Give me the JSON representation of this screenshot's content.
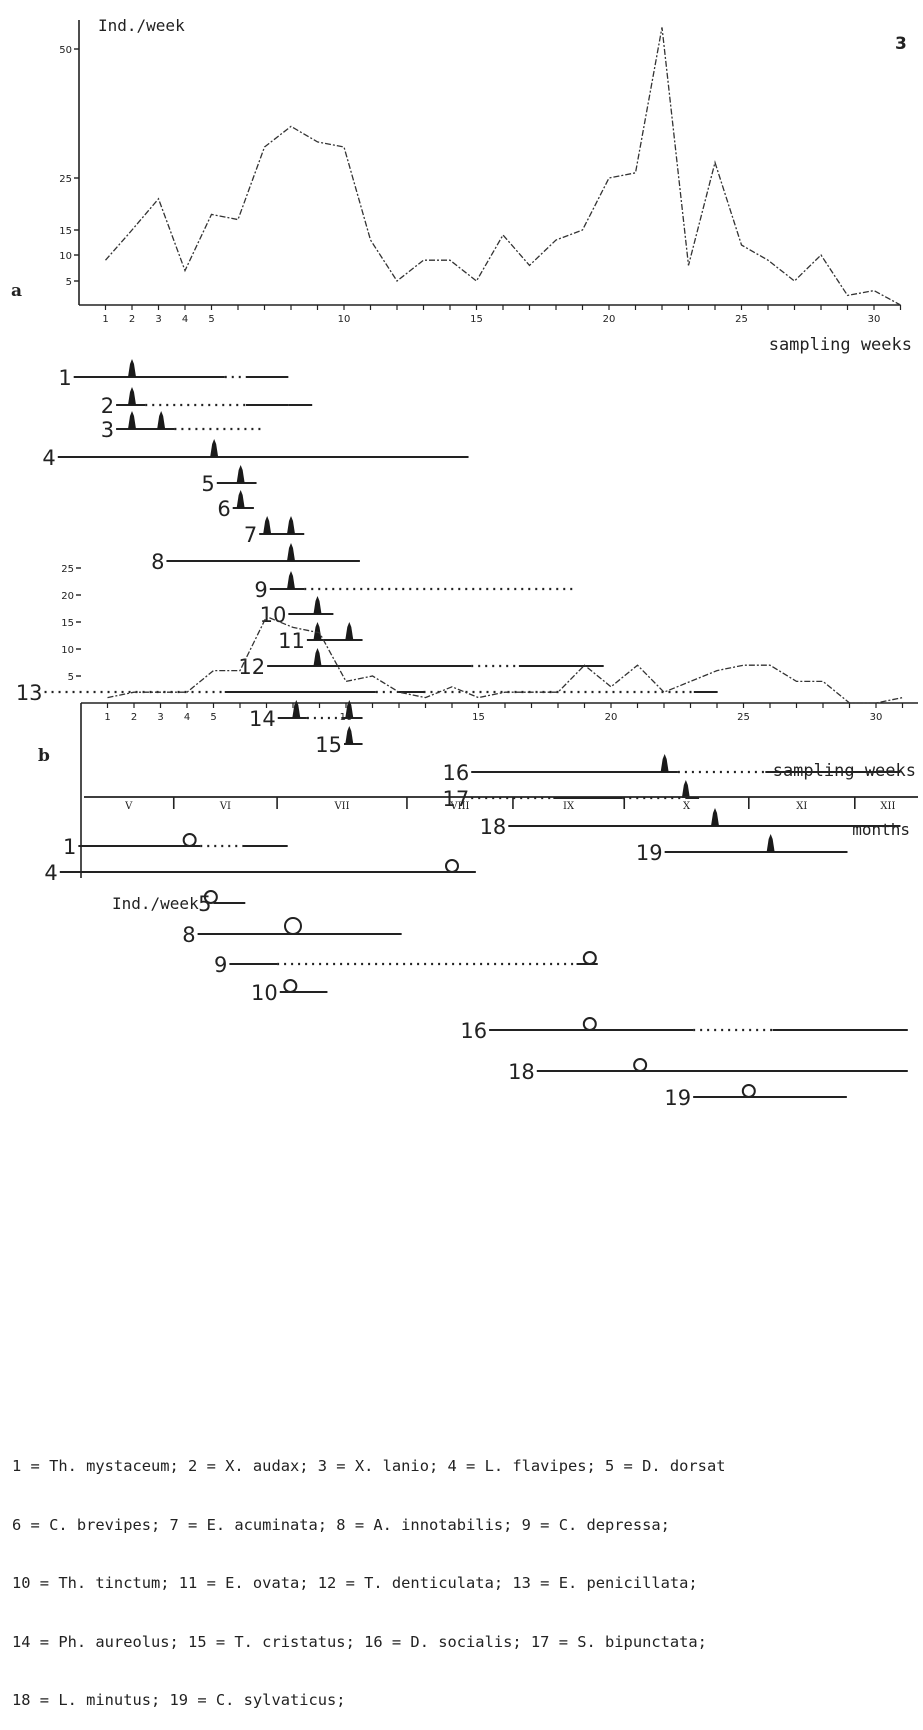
{
  "figure_number": "3",
  "legend_lines": [
    "1 = Th. mystaceum; 2 = X. audax; 3 = X. lanio; 4 = L. flavipes; 5 = D. dorsat",
    "6 = C. brevipes; 7 = E. acuminata; 8 = A. innotabilis; 9 = C. depressa;",
    "10 = Th. tinctum; 11 = E. ovata; 12 = T. denticulata; 13 = E. penicillata;",
    "14 = Ph. aureolus; 15 = T. cristatus; 16 = D. socialis; 17 = S. bipunctata;",
    "18 = L. minutus; 19 = C. sylvaticus;"
  ],
  "chart_data": [
    {
      "panel": "a",
      "type": "line",
      "ylabel": "Ind./week",
      "xlabel": "sampling weeks",
      "x_ticks": [
        1,
        2,
        3,
        4,
        5,
        10,
        15,
        20,
        25,
        30
      ],
      "y_ticks": [
        5,
        10,
        15,
        25,
        50
      ],
      "xlim": [
        0,
        31
      ],
      "ylim": [
        0,
        55
      ],
      "x": [
        1,
        2,
        3,
        4,
        5,
        6,
        7,
        8,
        9,
        10,
        11,
        12,
        13,
        14,
        15,
        16,
        17,
        18,
        19,
        20,
        21,
        22,
        23,
        24,
        25,
        26,
        27,
        28,
        29,
        30,
        31
      ],
      "values": [
        9,
        15,
        21,
        7,
        18,
        17,
        31,
        35,
        32,
        31,
        13,
        5,
        9,
        9,
        5,
        14,
        8,
        13,
        15,
        25,
        26,
        54,
        8,
        28,
        12,
        9,
        5,
        10,
        2,
        3,
        0
      ]
    },
    {
      "panel": "b",
      "type": "line",
      "ylabel": "Ind./week",
      "xlabel": "sampling weeks",
      "x_ticks": [
        1,
        2,
        3,
        4,
        5,
        10,
        15,
        20,
        25,
        30
      ],
      "y_ticks": [
        5,
        10,
        15,
        20,
        25
      ],
      "xlim": [
        0,
        31
      ],
      "ylim": [
        0,
        28
      ],
      "x": [
        1,
        2,
        3,
        4,
        5,
        6,
        7,
        8,
        9,
        10,
        11,
        12,
        13,
        14,
        15,
        16,
        17,
        18,
        19,
        20,
        21,
        22,
        23,
        24,
        25,
        26,
        27,
        28,
        29,
        30,
        31
      ],
      "values": [
        1,
        2,
        2,
        2,
        6,
        6,
        16,
        14,
        13,
        4,
        5,
        2,
        1,
        3,
        1,
        2,
        2,
        2,
        7,
        3,
        7,
        2,
        4,
        6,
        7,
        7,
        4,
        4,
        0,
        0,
        1
      ]
    }
  ],
  "phenology_a": [
    {
      "label": "1",
      "segments": [
        [
          -0.2,
          5.5,
          "solid"
        ],
        [
          5.5,
          6.3,
          "dotted"
        ],
        [
          6.3,
          7.9,
          "solid"
        ]
      ],
      "peaks": [
        2
      ]
    },
    {
      "label": "2",
      "segments": [
        [
          1.4,
          2.5,
          "solid"
        ],
        [
          2.5,
          6.3,
          "dotted"
        ],
        [
          6.3,
          7.9,
          "solid"
        ],
        [
          7.9,
          8.8,
          "solid"
        ]
      ],
      "peaks": [
        2
      ]
    },
    {
      "label": "3",
      "segments": [
        [
          1.4,
          3.6,
          "solid"
        ],
        [
          3.6,
          6.9,
          "dotted"
        ]
      ],
      "peaks": [
        2,
        3.1
      ]
    },
    {
      "label": "4",
      "segments": [
        [
          -0.8,
          14.7,
          "solid"
        ]
      ],
      "peaks": [
        5.1
      ]
    },
    {
      "label": "5",
      "segments": [
        [
          5.2,
          6.7,
          "solid"
        ]
      ],
      "peaks": [
        6.1
      ]
    },
    {
      "label": "6",
      "segments": [
        [
          5.8,
          6.6,
          "solid"
        ]
      ],
      "peaks": [
        6.1
      ]
    },
    {
      "label": "7",
      "segments": [
        [
          6.8,
          8.5,
          "solid"
        ]
      ],
      "peaks": [
        7.1,
        8
      ]
    },
    {
      "label": "8",
      "segments": [
        [
          3.3,
          10.6,
          "solid"
        ]
      ],
      "peaks": [
        8
      ]
    },
    {
      "label": "9",
      "segments": [
        [
          7.2,
          8.5,
          "solid"
        ],
        [
          8.5,
          18.8,
          "dotted"
        ]
      ],
      "peaks": [
        8
      ]
    },
    {
      "label": "10",
      "segments": [
        [
          7.9,
          9.6,
          "solid"
        ]
      ],
      "peaks": [
        9
      ]
    },
    {
      "label": "11",
      "segments": [
        [
          8.6,
          10.7,
          "solid"
        ]
      ],
      "peaks": [
        9,
        10.2
      ]
    },
    {
      "label": "12",
      "segments": [
        [
          7.1,
          14.8,
          "solid"
        ],
        [
          14.8,
          16.6,
          "dotted"
        ],
        [
          16.6,
          19.8,
          "solid"
        ]
      ],
      "peaks": [
        9
      ]
    },
    {
      "label": "13",
      "segments": [
        [
          -1.3,
          5.5,
          "dotted"
        ],
        [
          5.5,
          11.2,
          "solid"
        ],
        [
          11.2,
          12,
          "dotted"
        ],
        [
          12,
          13,
          "solid"
        ],
        [
          13,
          23.2,
          "dotted"
        ],
        [
          23.2,
          24.1,
          "solid"
        ]
      ],
      "peaks": []
    },
    {
      "label": "14",
      "segments": [
        [
          7.5,
          8.6,
          "solid"
        ],
        [
          8.6,
          9.9,
          "dotted"
        ],
        [
          9.9,
          10.7,
          "solid"
        ]
      ],
      "peaks": [
        8.2,
        10.2
      ]
    },
    {
      "label": "15",
      "segments": [
        [
          10,
          10.7,
          "solid"
        ]
      ],
      "peaks": [
        10.2
      ]
    },
    {
      "label": "16",
      "segments": [
        [
          14.8,
          22.6,
          "solid"
        ],
        [
          22.6,
          25.9,
          "dotted"
        ],
        [
          25.9,
          31,
          "solid"
        ]
      ],
      "peaks": [
        22.1
      ]
    },
    {
      "label": "17",
      "segments": [
        [
          14.8,
          17.9,
          "dotted"
        ],
        [
          17.9,
          20.5,
          "solid"
        ],
        [
          20.5,
          22.9,
          "dotted"
        ],
        [
          22.9,
          23.4,
          "solid"
        ]
      ],
      "peaks": [
        22.9
      ]
    },
    {
      "label": "18",
      "segments": [
        [
          16.2,
          31,
          "solid"
        ]
      ],
      "peaks": [
        24
      ]
    },
    {
      "label": "19",
      "segments": [
        [
          22.1,
          29,
          "solid"
        ]
      ],
      "peaks": [
        26.1
      ]
    }
  ],
  "phenology_b": [
    {
      "label": "1",
      "segments": [
        [
          -0.1,
          4.5,
          "solid"
        ],
        [
          4.5,
          6.1,
          "dotted"
        ],
        [
          6.1,
          7.8,
          "solid"
        ]
      ],
      "circles": [
        [
          4.1,
          "small"
        ]
      ]
    },
    {
      "label": "4",
      "segments": [
        [
          -0.8,
          14.9,
          "solid"
        ]
      ],
      "circles": [
        [
          14,
          "small"
        ]
      ]
    },
    {
      "label": "5",
      "segments": [
        [
          5,
          6.2,
          "solid"
        ]
      ],
      "circles": [
        [
          4.9,
          "small"
        ]
      ]
    },
    {
      "label": "8",
      "segments": [
        [
          4.4,
          12.1,
          "solid"
        ]
      ],
      "circles": [
        [
          8,
          "large"
        ]
      ]
    },
    {
      "label": "9",
      "segments": [
        [
          5.6,
          7.4,
          "solid"
        ],
        [
          7.4,
          18.7,
          "dotted"
        ],
        [
          18.7,
          19.5,
          "solid"
        ]
      ],
      "circles": [
        [
          19.2,
          "small"
        ]
      ]
    },
    {
      "label": "10",
      "segments": [
        [
          7.5,
          9.3,
          "solid"
        ]
      ],
      "circles": [
        [
          7.9,
          "small"
        ]
      ]
    },
    {
      "label": "16",
      "segments": [
        [
          15.4,
          23.1,
          "solid"
        ],
        [
          23.1,
          26.1,
          "dotted"
        ],
        [
          26.1,
          31.2,
          "solid"
        ]
      ],
      "circles": [
        [
          19.2,
          "small"
        ]
      ]
    },
    {
      "label": "18",
      "segments": [
        [
          17.2,
          31.2,
          "solid"
        ]
      ],
      "circles": [
        [
          21.1,
          "small"
        ]
      ]
    },
    {
      "label": "19",
      "segments": [
        [
          23.1,
          28.9,
          "solid"
        ]
      ],
      "circles": [
        [
          25.2,
          "small"
        ]
      ]
    }
  ],
  "months": {
    "label": "months",
    "names": [
      "V",
      "VI",
      "VII",
      "VIII",
      "IX",
      "X",
      "XI",
      "XII"
    ],
    "boundaries": [
      3.5,
      7.4,
      12.3,
      16.3,
      20.5,
      25.2,
      29.2
    ]
  }
}
